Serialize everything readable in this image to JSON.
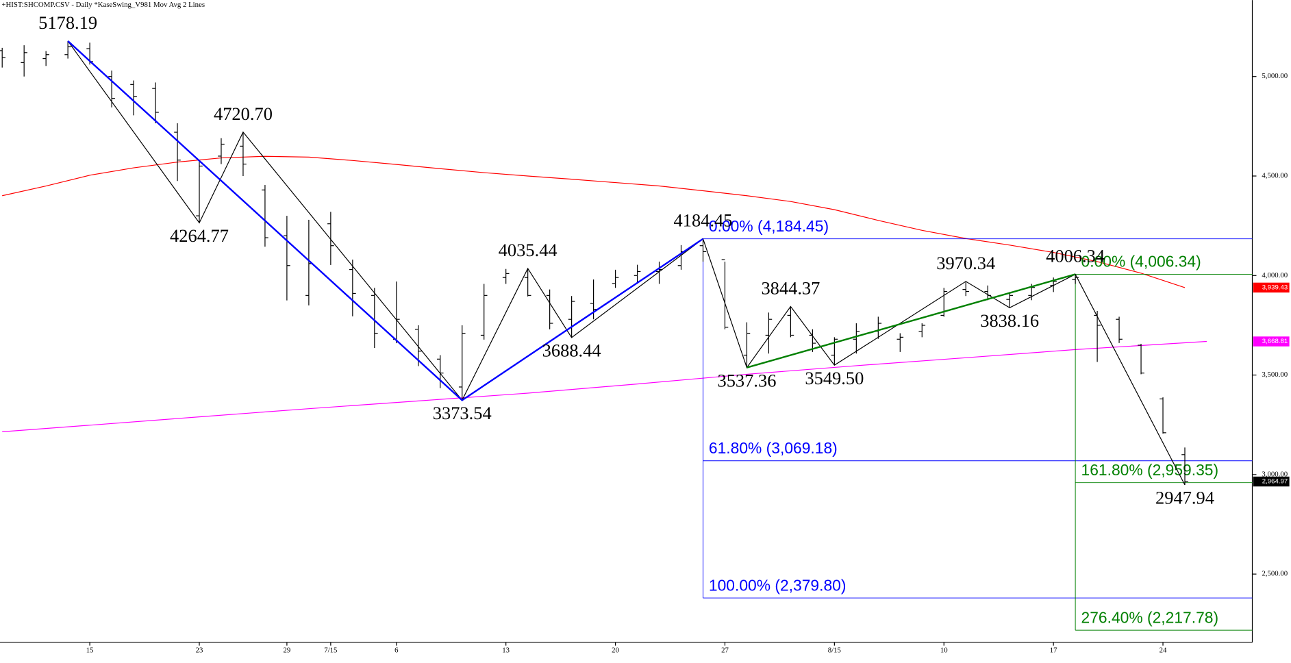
{
  "chart_data": {
    "type": "ohlc",
    "title": "+HIST:SHCOMP.CSV - Daily  *KaseSwing_V981  Mov Avg 2 Lines",
    "xlim": [
      -4.1,
      53.08
    ],
    "ylim": [
      2157,
      5384
    ],
    "xticks": [
      {
        "value": 0,
        "label": "15"
      },
      {
        "value": 5,
        "label": "23"
      },
      {
        "value": 9,
        "label": "29"
      },
      {
        "value": 11,
        "label": "7/15"
      },
      {
        "value": 14,
        "label": "6"
      },
      {
        "value": 19,
        "label": "13"
      },
      {
        "value": 24,
        "label": "20"
      },
      {
        "value": 29,
        "label": "27"
      },
      {
        "value": 34,
        "label": "8/15"
      },
      {
        "value": 39,
        "label": "10"
      },
      {
        "value": 44,
        "label": "17"
      },
      {
        "value": 49,
        "label": "24"
      }
    ],
    "yticks": [
      {
        "value": 2500,
        "label": "2,500.00"
      },
      {
        "value": 3000,
        "label": "3,000.00"
      },
      {
        "value": 3500,
        "label": "3,500.00"
      },
      {
        "value": 4000,
        "label": "4,000.00"
      },
      {
        "value": 4500,
        "label": "4,500.00"
      },
      {
        "value": 5000,
        "label": "5,000.00"
      }
    ],
    "bar_color": "#000000",
    "ohlc": {
      "x": [
        -4,
        -3,
        -2,
        -1,
        0,
        1,
        2,
        3,
        4,
        5,
        6,
        7,
        8,
        9,
        10,
        11,
        12,
        13,
        14,
        15,
        16,
        17,
        18,
        19,
        20,
        21,
        22,
        23,
        24,
        25,
        26,
        27,
        28,
        29,
        30,
        31,
        32,
        33,
        34,
        35,
        36,
        37,
        38,
        39,
        40,
        41,
        42,
        43,
        44,
        45,
        46,
        47,
        48,
        49,
        50
      ],
      "open": [
        5130,
        5070,
        5090,
        5110,
        5140,
        5000,
        4960,
        4940,
        4720,
        4300,
        4600,
        4650,
        4430,
        4200,
        3900,
        4260,
        4030,
        3900,
        3680,
        3730,
        3580,
        3440,
        3700,
        3990,
        3990,
        3900,
        3780,
        3860,
        3960,
        4000,
        4020,
        4050,
        4150,
        4080,
        3600,
        3700,
        3800,
        3700,
        3600,
        3680,
        3720,
        3680,
        3720,
        3800,
        3930,
        3920,
        3880,
        3900,
        3950,
        3980,
        3800,
        3780,
        3650,
        3380,
        3100
      ],
      "high": [
        5144,
        5157,
        5128,
        5178.19,
        5170,
        5030,
        4980,
        4970,
        4765,
        4580,
        4690,
        4720.7,
        4455,
        4300,
        4280,
        4320,
        4080,
        3938,
        3970,
        3750,
        3600,
        3750,
        3958,
        4033,
        4035.44,
        3930,
        3897,
        3980,
        4029,
        4054,
        4070,
        4153,
        4184.45,
        4070,
        3765,
        3814,
        3844.37,
        3730,
        3690,
        3760,
        3793,
        3710,
        3760,
        3938,
        3970.34,
        3950,
        3917,
        3958,
        3990,
        4006.34,
        3822,
        3793,
        3657,
        3388,
        3136
      ],
      "low": [
        5045,
        5000,
        5053,
        5090,
        5060,
        4845,
        4805,
        4765,
        4475,
        4264.77,
        4560,
        4500,
        4145,
        3875,
        3850,
        4053,
        3795,
        3636,
        3660,
        3545,
        3434,
        3373.54,
        3678,
        3958,
        3895,
        3730,
        3688.44,
        3780,
        3938,
        3958,
        3958,
        4029,
        4070,
        3730,
        3537.36,
        3608,
        3690,
        3616,
        3549.5,
        3608,
        3682,
        3616,
        3690,
        3793,
        3897,
        3876,
        3838.16,
        3876,
        3917,
        3958,
        3566,
        3661,
        3504,
        3206,
        2947.94
      ],
      "close": [
        5095,
        5120,
        5110,
        5150,
        5075,
        4890,
        4900,
        4820,
        4580,
        4550,
        4660,
        4560,
        4190,
        4050,
        4060,
        4150,
        3910,
        3710,
        3780,
        3620,
        3510,
        3710,
        3900,
        4010,
        3900,
        3760,
        3870,
        3830,
        3990,
        4020,
        4030,
        4120,
        4120,
        3740,
        3710,
        3780,
        3700,
        3660,
        3680,
        3720,
        3760,
        3690,
        3750,
        3920,
        3920,
        3900,
        3900,
        3940,
        3970,
        3990,
        3750,
        3680,
        3510,
        3210,
        2964.97
      ]
    },
    "moving_averages": [
      {
        "color": "#ff0000",
        "x": [
          -4,
          -2,
          0,
          2,
          4,
          6,
          8,
          10,
          12,
          14,
          16,
          18,
          20,
          22,
          24,
          26,
          28,
          30,
          32,
          34,
          36,
          38,
          40,
          42,
          44,
          46,
          48,
          50
        ],
        "values": [
          4401,
          4450,
          4504,
          4541,
          4570,
          4591,
          4599,
          4595,
          4578,
          4558,
          4537,
          4517,
          4500,
          4484,
          4467,
          4450,
          4426,
          4401,
          4372,
          4331,
          4277,
          4227,
          4186,
          4153,
          4116,
          4070,
          4012,
          3939.43
        ]
      },
      {
        "color": "#ff00ff",
        "x": [
          -4,
          0,
          5,
          10,
          15,
          20,
          25,
          30,
          35,
          40,
          45,
          51
        ],
        "values": [
          3215,
          3248,
          3290,
          3331,
          3370,
          3409,
          3455,
          3504,
          3547,
          3587,
          3628,
          3668.81
        ]
      }
    ],
    "swings": {
      "color": "#000000",
      "x": [
        -1,
        5,
        7,
        17,
        20,
        22,
        28,
        30,
        32,
        34,
        40,
        42,
        45,
        50
      ],
      "values": [
        5178.19,
        4264.77,
        4720.7,
        3373.54,
        4035.44,
        3688.44,
        4184.45,
        3537.36,
        3844.37,
        3549.5,
        3970.34,
        3838.16,
        4006.34,
        2947.94
      ],
      "value_labels": [
        "5178.19",
        "4264.77",
        "4720.70",
        "3373.54",
        "4035.44",
        "3688.44",
        "4184.45",
        "3537.36",
        "3844.37",
        "3549.50",
        "3970.34",
        "3838.16",
        "4006.34",
        "2947.94"
      ]
    },
    "legs": [
      {
        "color": "#0000ff",
        "x": [
          -1,
          17,
          28
        ],
        "values": [
          5178.19,
          3373.54,
          4184.45
        ]
      },
      {
        "color": "#008000",
        "x": [
          30,
          45
        ],
        "values": [
          3537.36,
          4006.34
        ]
      }
    ],
    "fib_sets": [
      {
        "color": "#0000ff",
        "x": 28,
        "levels": [
          {
            "value": 4184.45,
            "label": "0.00% (4,184.45)"
          },
          {
            "value": 3069.18,
            "label": "61.80% (3,069.18)"
          },
          {
            "value": 2379.8,
            "label": "100.00% (2,379.80)"
          }
        ]
      },
      {
        "color": "#008000",
        "x": 45,
        "levels": [
          {
            "value": 4006.34,
            "label": "0.00% (4,006.34)"
          },
          {
            "value": 2959.35,
            "label": "161.80% (2,959.35)"
          },
          {
            "value": 2217.78,
            "label": "276.40% (2,217.78)"
          }
        ]
      }
    ],
    "axis_flags": [
      {
        "value": 3939.43,
        "label": "3,939.43",
        "color": "#ff0000"
      },
      {
        "value": 3668.81,
        "label": "3,668.81",
        "color": "#ff00ff"
      },
      {
        "value": 2964.97,
        "label": "2,964.97",
        "color": "#000000"
      }
    ]
  }
}
